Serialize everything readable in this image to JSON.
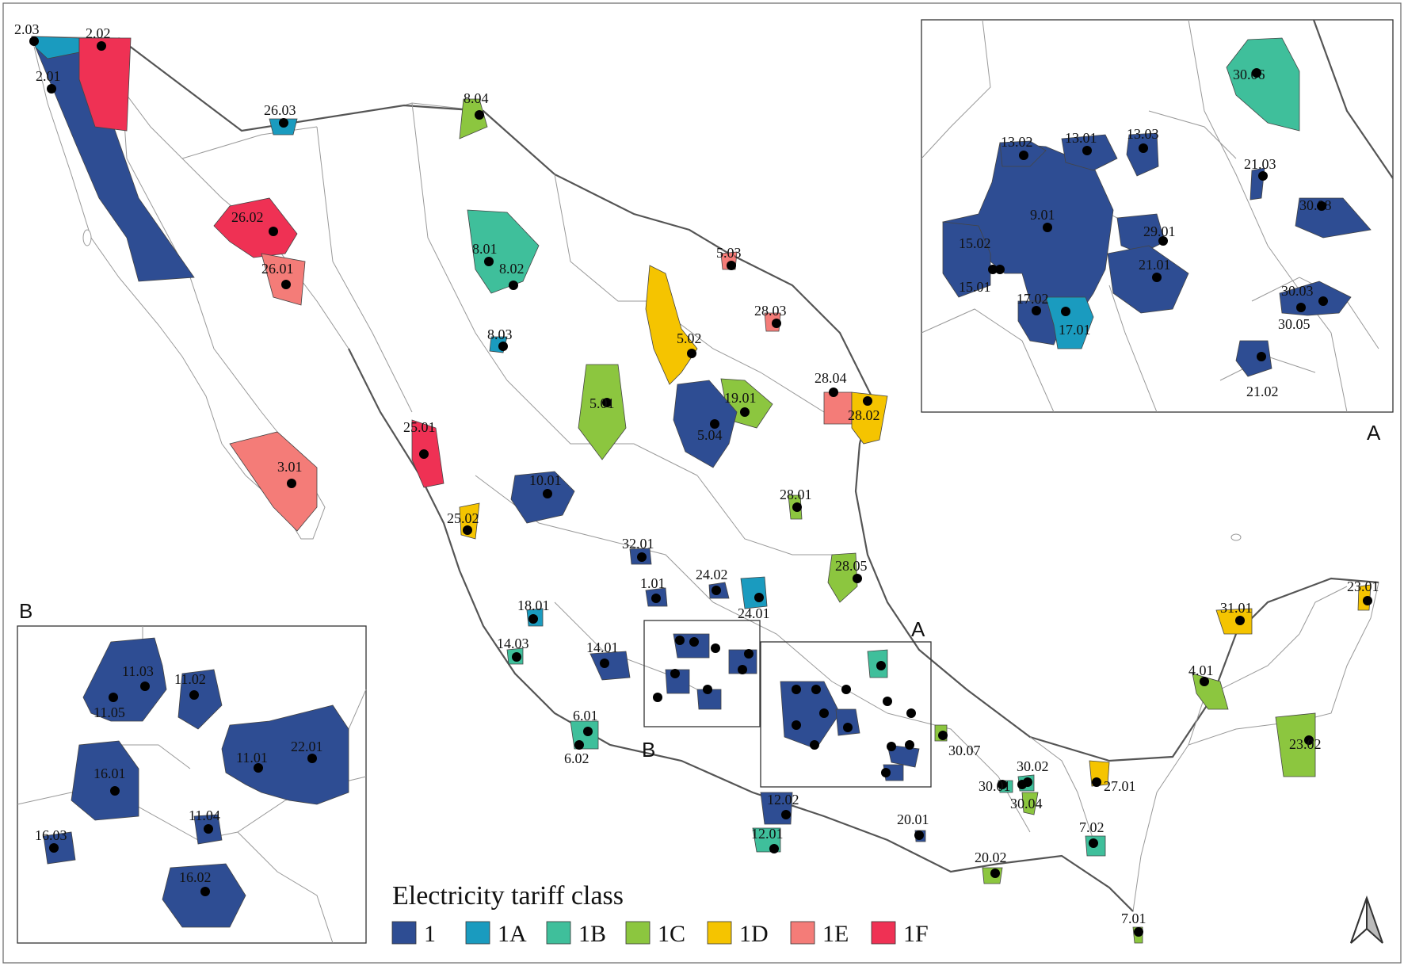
{
  "legend": {
    "title": "Electricity tariff class",
    "items": [
      {
        "label": "1",
        "color": "#2e4d93"
      },
      {
        "label": "1A",
        "color": "#1a9bbf"
      },
      {
        "label": "1B",
        "color": "#3fbf9b"
      },
      {
        "label": "1C",
        "color": "#8cc63f"
      },
      {
        "label": "1D",
        "color": "#f5c400"
      },
      {
        "label": "1E",
        "color": "#f47c78"
      },
      {
        "label": "1F",
        "color": "#ef3154"
      }
    ]
  },
  "insets": {
    "A": "A",
    "B": "B"
  },
  "main_labels": [
    {
      "text": "2.03",
      "cls": "1A"
    },
    {
      "text": "2.02",
      "cls": "1F"
    },
    {
      "text": "2.01",
      "cls": "1"
    },
    {
      "text": "26.03",
      "cls": "1A"
    },
    {
      "text": "8.04",
      "cls": "1C"
    },
    {
      "text": "26.02",
      "cls": "1F"
    },
    {
      "text": "26.01",
      "cls": "1E"
    },
    {
      "text": "8.01",
      "cls": "1B"
    },
    {
      "text": "8.02",
      "cls": "1B"
    },
    {
      "text": "5.03",
      "cls": "1E"
    },
    {
      "text": "28.03",
      "cls": "1E"
    },
    {
      "text": "8.03",
      "cls": "1A"
    },
    {
      "text": "5.02",
      "cls": "1D"
    },
    {
      "text": "28.04",
      "cls": "1E"
    },
    {
      "text": "19.01",
      "cls": "1C"
    },
    {
      "text": "28.02",
      "cls": "1D"
    },
    {
      "text": "5.01",
      "cls": "1C"
    },
    {
      "text": "5.04",
      "cls": "1"
    },
    {
      "text": "25.01",
      "cls": "1F"
    },
    {
      "text": "3.01",
      "cls": "1E"
    },
    {
      "text": "10.01",
      "cls": "1"
    },
    {
      "text": "28.01",
      "cls": "1C"
    },
    {
      "text": "25.02",
      "cls": "1D"
    },
    {
      "text": "32.01",
      "cls": "1"
    },
    {
      "text": "28.05",
      "cls": "1C"
    },
    {
      "text": "24.02",
      "cls": "1"
    },
    {
      "text": "1.01",
      "cls": "1"
    },
    {
      "text": "24.01",
      "cls": "1A"
    },
    {
      "text": "23.01",
      "cls": "1D"
    },
    {
      "text": "31.01",
      "cls": "1D"
    },
    {
      "text": "18.01",
      "cls": "1A"
    },
    {
      "text": "14.03",
      "cls": "1B"
    },
    {
      "text": "14.01",
      "cls": "1"
    },
    {
      "text": "4.01",
      "cls": "1C"
    },
    {
      "text": "6.01",
      "cls": "1B"
    },
    {
      "text": "6.02",
      "cls": "1B"
    },
    {
      "text": "30.07",
      "cls": "1C"
    },
    {
      "text": "23.02",
      "cls": "1C"
    },
    {
      "text": "30.02",
      "cls": "1B"
    },
    {
      "text": "30.01",
      "cls": "1B"
    },
    {
      "text": "30.04",
      "cls": "1C"
    },
    {
      "text": "27.01",
      "cls": "1D"
    },
    {
      "text": "12.02",
      "cls": "1"
    },
    {
      "text": "12.01",
      "cls": "1B"
    },
    {
      "text": "20.01",
      "cls": "1"
    },
    {
      "text": "7.02",
      "cls": "1B"
    },
    {
      "text": "20.02",
      "cls": "1C"
    },
    {
      "text": "7.01",
      "cls": "1C"
    }
  ],
  "inset_a_labels": [
    {
      "text": "30.06",
      "cls": "1B"
    },
    {
      "text": "13.02",
      "cls": "1"
    },
    {
      "text": "13.01",
      "cls": "1"
    },
    {
      "text": "13.03",
      "cls": "1"
    },
    {
      "text": "21.03",
      "cls": "1"
    },
    {
      "text": "9.01",
      "cls": "1"
    },
    {
      "text": "30.08",
      "cls": "1"
    },
    {
      "text": "15.02",
      "cls": "1"
    },
    {
      "text": "29.01",
      "cls": "1"
    },
    {
      "text": "21.01",
      "cls": "1"
    },
    {
      "text": "15.01",
      "cls": "1"
    },
    {
      "text": "30.03",
      "cls": "1"
    },
    {
      "text": "17.02",
      "cls": "1"
    },
    {
      "text": "17.01",
      "cls": "1A"
    },
    {
      "text": "30.05",
      "cls": "1"
    },
    {
      "text": "21.02",
      "cls": "1"
    }
  ],
  "inset_b_labels": [
    {
      "text": "11.03",
      "cls": "1"
    },
    {
      "text": "11.02",
      "cls": "1"
    },
    {
      "text": "11.05",
      "cls": "1"
    },
    {
      "text": "11.01",
      "cls": "1"
    },
    {
      "text": "22.01",
      "cls": "1"
    },
    {
      "text": "16.01",
      "cls": "1"
    },
    {
      "text": "11.04",
      "cls": "1"
    },
    {
      "text": "16.03",
      "cls": "1"
    },
    {
      "text": "16.02",
      "cls": "1"
    }
  ]
}
